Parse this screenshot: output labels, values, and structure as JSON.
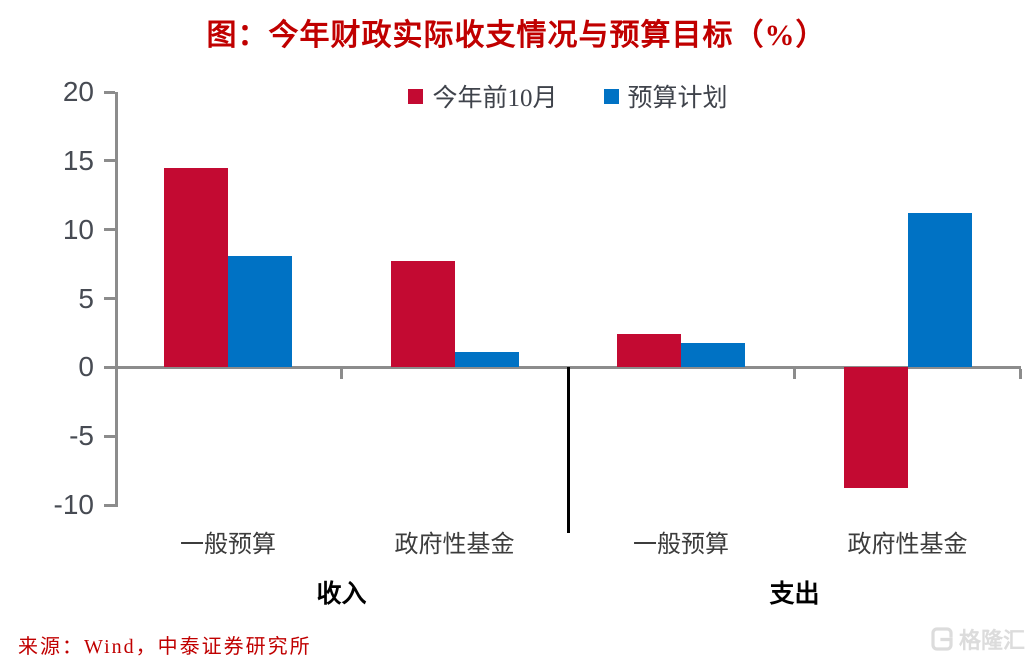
{
  "title": "图：今年财政实际收支情况与预算目标（%）",
  "colors": {
    "title": "#c00000",
    "source": "#c00000",
    "watermark": "#dcdcdc",
    "axis": "#8c8c8c",
    "tick_labels": "#474b53",
    "category_labels": "#3c3c3c",
    "group_labels": "#000000",
    "divider": "#000000",
    "background": "#ffffff"
  },
  "chart_data": {
    "type": "bar",
    "title": "图：今年财政实际收支情况与预算目标（%）",
    "unit": "%",
    "categories": [
      "一般预算",
      "政府性基金",
      "一般预算",
      "政府性基金"
    ],
    "category_groups": [
      {
        "label": "收入",
        "span": [
          0,
          1
        ]
      },
      {
        "label": "支出",
        "span": [
          2,
          3
        ]
      }
    ],
    "series": [
      {
        "name": "今年前10月",
        "color": "#c30a32",
        "values": [
          14.5,
          7.7,
          2.4,
          -8.8
        ]
      },
      {
        "name": "预算计划",
        "color": "#0072c4",
        "values": [
          8.1,
          1.1,
          1.8,
          11.2
        ]
      }
    ],
    "xlabel": "",
    "ylabel": "",
    "ylim": [
      -10,
      20
    ],
    "yticks": [
      20,
      15,
      10,
      5,
      0,
      -5,
      -10
    ],
    "legend_position": "top-center",
    "grid": false,
    "section_divider_after_category": 1
  },
  "source": {
    "text": "来源：Wind，中泰证券研究所"
  },
  "watermark": {
    "text": "格隆汇"
  }
}
